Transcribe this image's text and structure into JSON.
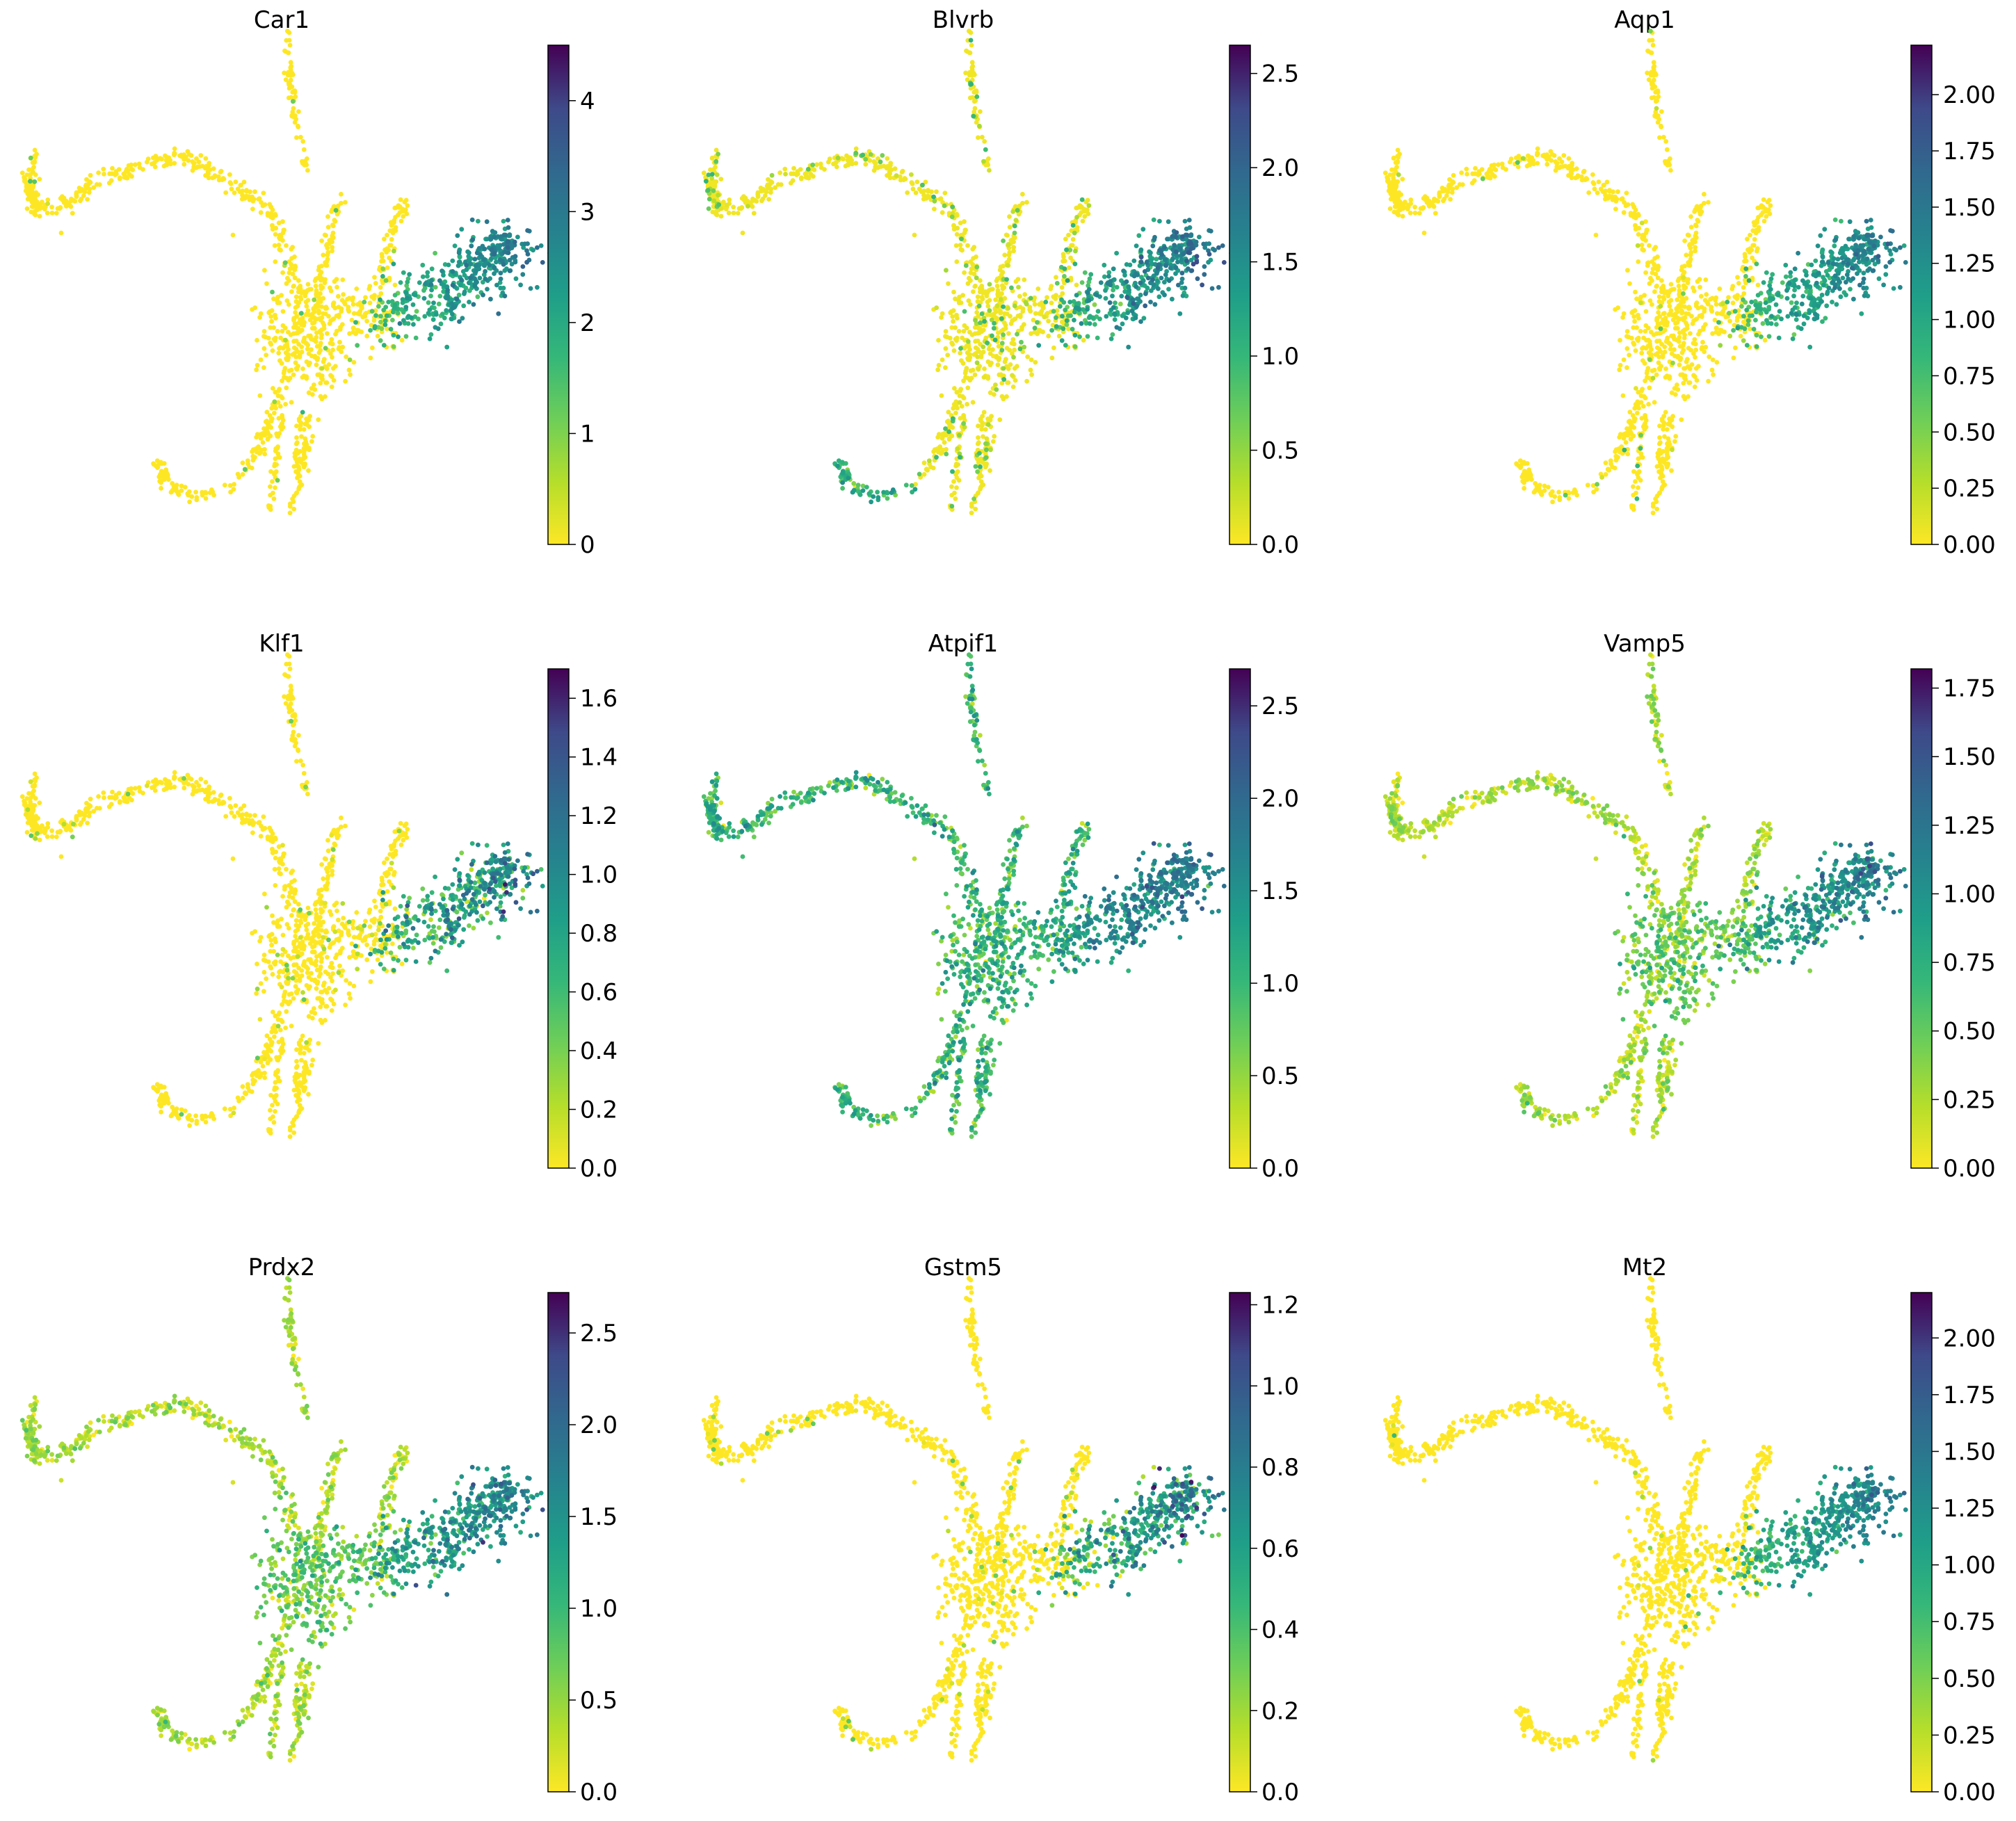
{
  "figure": {
    "description_type": "scatter panels",
    "colormap": "viridis_r",
    "point_color_low": "#fde725",
    "point_color_high": "#440154"
  },
  "chart_data": [
    {
      "type": "scatter",
      "title": "Car1",
      "color_range": [
        0,
        4.5
      ],
      "ticks": [
        0,
        1,
        2,
        3,
        4
      ],
      "tick_labels": [
        "0",
        "1",
        "2",
        "3",
        "4"
      ],
      "expr_profile": "erythroid-tail"
    },
    {
      "type": "scatter",
      "title": "Blvrb",
      "color_range": [
        0,
        2.65
      ],
      "ticks": [
        0,
        0.5,
        1.0,
        1.5,
        2.0,
        2.5
      ],
      "tick_labels": [
        "0.0",
        "0.5",
        "1.0",
        "1.5",
        "2.0",
        "2.5"
      ],
      "expr_profile": "erythroid-tail-plus-lower"
    },
    {
      "type": "scatter",
      "title": "Aqp1",
      "color_range": [
        0,
        2.22
      ],
      "ticks": [
        0,
        0.25,
        0.5,
        0.75,
        1.0,
        1.25,
        1.5,
        1.75,
        2.0
      ],
      "tick_labels": [
        "0.00",
        "0.25",
        "0.50",
        "0.75",
        "1.00",
        "1.25",
        "1.50",
        "1.75",
        "2.00"
      ],
      "expr_profile": "erythroid-tail"
    },
    {
      "type": "scatter",
      "title": "Klf1",
      "color_range": [
        0,
        1.7
      ],
      "ticks": [
        0,
        0.2,
        0.4,
        0.6,
        0.8,
        1.0,
        1.2,
        1.4,
        1.6
      ],
      "tick_labels": [
        "0.0",
        "0.2",
        "0.4",
        "0.6",
        "0.8",
        "1.0",
        "1.2",
        "1.4",
        "1.6"
      ],
      "expr_profile": "erythroid-tail-mixed"
    },
    {
      "type": "scatter",
      "title": "Atpif1",
      "color_range": [
        0,
        2.7
      ],
      "ticks": [
        0,
        0.5,
        1.0,
        1.5,
        2.0,
        2.5
      ],
      "tick_labels": [
        "0.0",
        "0.5",
        "1.0",
        "1.5",
        "2.0",
        "2.5"
      ],
      "expr_profile": "broad"
    },
    {
      "type": "scatter",
      "title": "Vamp5",
      "color_range": [
        0,
        1.82
      ],
      "ticks": [
        0,
        0.25,
        0.5,
        0.75,
        1.0,
        1.25,
        1.5,
        1.75
      ],
      "tick_labels": [
        "0.00",
        "0.25",
        "0.50",
        "0.75",
        "1.00",
        "1.25",
        "1.50",
        "1.75"
      ],
      "expr_profile": "medium-broad"
    },
    {
      "type": "scatter",
      "title": "Prdx2",
      "color_range": [
        0,
        2.72
      ],
      "ticks": [
        0,
        0.5,
        1.0,
        1.5,
        2.0,
        2.5
      ],
      "tick_labels": [
        "0.0",
        "0.5",
        "1.0",
        "1.5",
        "2.0",
        "2.5"
      ],
      "expr_profile": "medium-broad"
    },
    {
      "type": "scatter",
      "title": "Gstm5",
      "color_range": [
        0,
        1.23
      ],
      "ticks": [
        0,
        0.2,
        0.4,
        0.6,
        0.8,
        1.0,
        1.2
      ],
      "tick_labels": [
        "0.0",
        "0.2",
        "0.4",
        "0.6",
        "0.8",
        "1.0",
        "1.2"
      ],
      "expr_profile": "erythroid-tail-mixed"
    },
    {
      "type": "scatter",
      "title": "Mt2",
      "color_range": [
        0,
        2.2
      ],
      "ticks": [
        0,
        0.25,
        0.5,
        0.75,
        1.0,
        1.25,
        1.5,
        1.75,
        2.0
      ],
      "tick_labels": [
        "0.00",
        "0.25",
        "0.50",
        "0.75",
        "1.00",
        "1.25",
        "1.50",
        "1.75",
        "2.00"
      ],
      "expr_profile": "erythroid-tail"
    }
  ]
}
